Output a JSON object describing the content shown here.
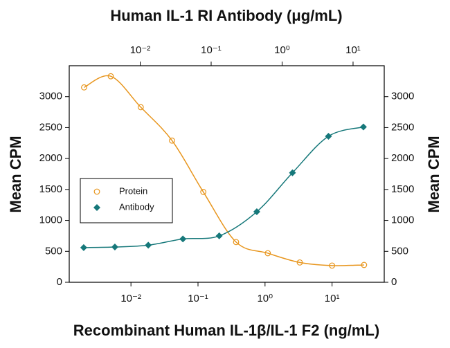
{
  "chart_data": {
    "type": "scatter",
    "title": "Human IL-1 RI Antibody (μg/mL)",
    "x_label": "Recombinant Human IL-1β/IL-1 F2 (ng/mL)",
    "y_label": "Mean CPM",
    "y2_label": "Mean CPM",
    "xscale": "log",
    "x2scale": "log",
    "xlim": [
      0.0012,
      60
    ],
    "xticks": [
      {
        "value": 0.01,
        "label": "10⁻²"
      },
      {
        "value": 0.1,
        "label": "10⁻¹"
      },
      {
        "value": 1,
        "label": "10⁰"
      },
      {
        "value": 10,
        "label": "10¹"
      }
    ],
    "x2lim": [
      0.001,
      27.5
    ],
    "x2ticks": [
      {
        "value": 0.01,
        "label": "10⁻²"
      },
      {
        "value": 0.1,
        "label": "10⁻¹"
      },
      {
        "value": 1,
        "label": "10⁰"
      },
      {
        "value": 10,
        "label": "10¹"
      }
    ],
    "ylim": [
      0,
      3500
    ],
    "yticks": [
      0,
      500,
      1000,
      1500,
      2000,
      2500,
      3000
    ],
    "y2lim": [
      0,
      3500
    ],
    "y2ticks": [
      0,
      500,
      1000,
      1500,
      2000,
      2500,
      3000
    ],
    "legend": "center-left",
    "series": [
      {
        "name": "Protein",
        "color": "#e8961e",
        "marker": "open-circle",
        "xaxis": "x",
        "x": [
          0.002,
          0.005,
          0.014,
          0.041,
          0.12,
          0.37,
          1.1,
          3.3,
          10,
          30
        ],
        "values": [
          3150,
          3330,
          2830,
          2290,
          1460,
          650,
          470,
          320,
          270,
          280
        ]
      },
      {
        "name": "Antibody",
        "color": "#16787a",
        "marker": "diamond",
        "xaxis": "x2",
        "x": [
          0.0016,
          0.0044,
          0.013,
          0.04,
          0.13,
          0.44,
          1.4,
          4.5,
          14
        ],
        "values": [
          560,
          570,
          600,
          700,
          750,
          1140,
          1770,
          2360,
          2510
        ]
      }
    ]
  }
}
